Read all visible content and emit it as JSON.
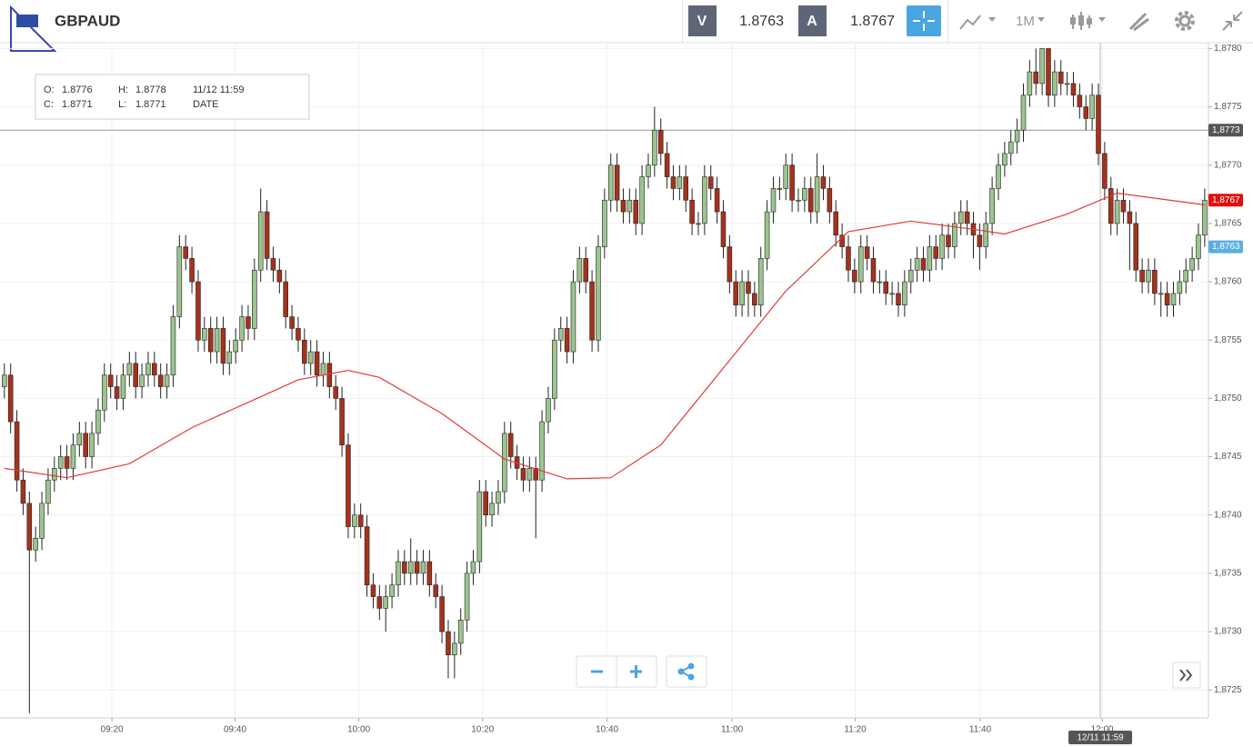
{
  "toolbar": {
    "symbol": "GBPAUD",
    "bid_label": "V",
    "bid": "1.8763",
    "ask_label": "A",
    "ask": "1.8767",
    "timeframe": "1M"
  },
  "ohlc_box": {
    "items": [
      [
        "O:",
        "1.8776"
      ],
      [
        "H:",
        "1.8778"
      ],
      [
        "C:",
        "1.8771"
      ],
      [
        "L:",
        "1.8771"
      ]
    ],
    "date": "11/12 11:59",
    "date_label": "DATE"
  },
  "chart_data": {
    "type": "candlestick",
    "up_color": "#9dc48e",
    "down_color": "#a5321c",
    "grid": true,
    "xlim": [
      -0.7,
      192.6
    ],
    "ylim": [
      1.87226,
      1.87805
    ],
    "yticks": [
      {
        "value": 1.8725,
        "label": "1,8725"
      },
      {
        "value": 1.873,
        "label": "1,8730"
      },
      {
        "value": 1.8735,
        "label": "1,8735"
      },
      {
        "value": 1.874,
        "label": "1,8740"
      },
      {
        "value": 1.8745,
        "label": "1,8745"
      },
      {
        "value": 1.875,
        "label": "1,8750"
      },
      {
        "value": 1.8755,
        "label": "1,8755"
      },
      {
        "value": 1.876,
        "label": "1,8760"
      },
      {
        "value": 1.8765,
        "label": "1,8765"
      },
      {
        "value": 1.877,
        "label": "1,8770"
      },
      {
        "value": 1.8775,
        "label": "1,8775"
      },
      {
        "value": 1.878,
        "label": "1,8780"
      }
    ],
    "xticks": [
      {
        "value": 17.2,
        "label": "09:20"
      },
      {
        "value": 36.9,
        "label": "09:40"
      },
      {
        "value": 56.7,
        "label": "10:00"
      },
      {
        "value": 76.5,
        "label": "10:20"
      },
      {
        "value": 96.4,
        "label": "10:40"
      },
      {
        "value": 116.4,
        "label": "11:00"
      },
      {
        "value": 136.1,
        "label": "11:20"
      },
      {
        "value": 156.1,
        "label": "11:40"
      },
      {
        "value": 175.6,
        "label": "12:00"
      }
    ],
    "crosshair": {
      "y": {
        "value": 1.8773,
        "label": "1,8773"
      },
      "x": {
        "value": 175.3,
        "label": "12/11 11:59"
      }
    },
    "price_tags": [
      {
        "value": 1.8767,
        "label": "1,8767",
        "color": "#e01010"
      },
      {
        "value": 1.8763,
        "label": "1,8763",
        "color": "#5aaee0"
      }
    ],
    "series": [
      {
        "color": "#e03a3a",
        "x": [
          0,
          10,
          20,
          30,
          40,
          47,
          55,
          60,
          70,
          80,
          90,
          97,
          105,
          115,
          125,
          135,
          145,
          155,
          160,
          170,
          178,
          185,
          192
        ],
        "values": [
          1.8744,
          1.87432,
          1.87444,
          1.87475,
          1.87499,
          1.87516,
          1.87524,
          1.87518,
          1.87487,
          1.87448,
          1.87431,
          1.87432,
          1.8746,
          1.87526,
          1.87592,
          1.87643,
          1.87652,
          1.87645,
          1.87641,
          1.87658,
          1.87676,
          1.87671,
          1.87666
        ]
      }
    ],
    "ohlc": [
      [
        1.8751,
        1.8753,
        1.875,
        1.8752
      ],
      [
        1.8752,
        1.8753,
        1.8747,
        1.8748
      ],
      [
        1.8748,
        1.8749,
        1.8742,
        1.8743
      ],
      [
        1.8743,
        1.8744,
        1.874,
        1.8741
      ],
      [
        1.8741,
        1.8742,
        1.8723,
        1.8737
      ],
      [
        1.8737,
        1.8739,
        1.8736,
        1.8738
      ],
      [
        1.8738,
        1.8742,
        1.8737,
        1.8741
      ],
      [
        1.8741,
        1.8744,
        1.874,
        1.8743
      ],
      [
        1.8743,
        1.8745,
        1.8742,
        1.8744
      ],
      [
        1.8744,
        1.8746,
        1.8743,
        1.8745
      ],
      [
        1.8745,
        1.8746,
        1.8743,
        1.8744
      ],
      [
        1.8744,
        1.8747,
        1.8743,
        1.8746
      ],
      [
        1.8746,
        1.8748,
        1.8745,
        1.8747
      ],
      [
        1.8747,
        1.8748,
        1.8744,
        1.8745
      ],
      [
        1.8745,
        1.8748,
        1.8744,
        1.8747
      ],
      [
        1.8747,
        1.875,
        1.8746,
        1.8749
      ],
      [
        1.8749,
        1.8753,
        1.8748,
        1.8752
      ],
      [
        1.8752,
        1.8753,
        1.875,
        1.8751
      ],
      [
        1.8751,
        1.8752,
        1.8749,
        1.875
      ],
      [
        1.875,
        1.8753,
        1.8749,
        1.8752
      ],
      [
        1.8752,
        1.8754,
        1.8751,
        1.8753
      ],
      [
        1.8753,
        1.8754,
        1.875,
        1.8751
      ],
      [
        1.8751,
        1.8753,
        1.875,
        1.8752
      ],
      [
        1.8752,
        1.8754,
        1.8751,
        1.8753
      ],
      [
        1.8753,
        1.8754,
        1.8751,
        1.8752
      ],
      [
        1.8752,
        1.8753,
        1.875,
        1.8751
      ],
      [
        1.8751,
        1.8753,
        1.875,
        1.8752
      ],
      [
        1.8752,
        1.8758,
        1.8751,
        1.8757
      ],
      [
        1.8757,
        1.8764,
        1.8756,
        1.8763
      ],
      [
        1.8763,
        1.8764,
        1.8761,
        1.8762
      ],
      [
        1.8762,
        1.8763,
        1.8759,
        1.876
      ],
      [
        1.876,
        1.8761,
        1.8754,
        1.8755
      ],
      [
        1.8755,
        1.8757,
        1.8754,
        1.8756
      ],
      [
        1.8756,
        1.8757,
        1.8753,
        1.8754
      ],
      [
        1.8754,
        1.8757,
        1.8753,
        1.8756
      ],
      [
        1.8756,
        1.8757,
        1.8752,
        1.8753
      ],
      [
        1.8753,
        1.8755,
        1.8752,
        1.8754
      ],
      [
        1.8754,
        1.8756,
        1.8753,
        1.8755
      ],
      [
        1.8755,
        1.8758,
        1.8754,
        1.8757
      ],
      [
        1.8757,
        1.8758,
        1.8755,
        1.8756
      ],
      [
        1.8756,
        1.8762,
        1.8755,
        1.8761
      ],
      [
        1.8761,
        1.8768,
        1.876,
        1.8766
      ],
      [
        1.8766,
        1.8767,
        1.8761,
        1.8762
      ],
      [
        1.8762,
        1.8763,
        1.876,
        1.8761
      ],
      [
        1.8761,
        1.8762,
        1.8759,
        1.876
      ],
      [
        1.876,
        1.8761,
        1.8756,
        1.8757
      ],
      [
        1.8757,
        1.8758,
        1.8755,
        1.8756
      ],
      [
        1.8756,
        1.8757,
        1.8754,
        1.8755
      ],
      [
        1.8755,
        1.8756,
        1.8752,
        1.8753
      ],
      [
        1.8753,
        1.8755,
        1.8752,
        1.8754
      ],
      [
        1.8754,
        1.8755,
        1.8751,
        1.8752
      ],
      [
        1.8752,
        1.8754,
        1.8751,
        1.8753
      ],
      [
        1.8753,
        1.8754,
        1.875,
        1.8751
      ],
      [
        1.8751,
        1.8752,
        1.8749,
        1.875
      ],
      [
        1.875,
        1.8751,
        1.8745,
        1.8746
      ],
      [
        1.8746,
        1.8747,
        1.8738,
        1.8739
      ],
      [
        1.8739,
        1.8741,
        1.8738,
        1.874
      ],
      [
        1.874,
        1.8741,
        1.8738,
        1.8739
      ],
      [
        1.8739,
        1.874,
        1.8733,
        1.8734
      ],
      [
        1.8734,
        1.8735,
        1.8732,
        1.8733
      ],
      [
        1.8733,
        1.8734,
        1.8731,
        1.8732
      ],
      [
        1.8732,
        1.8734,
        1.873,
        1.8733
      ],
      [
        1.8733,
        1.8735,
        1.8732,
        1.8734
      ],
      [
        1.8734,
        1.8737,
        1.8733,
        1.8736
      ],
      [
        1.8736,
        1.8737,
        1.8734,
        1.8735
      ],
      [
        1.8735,
        1.8738,
        1.8734,
        1.8736
      ],
      [
        1.8736,
        1.8737,
        1.8734,
        1.8735
      ],
      [
        1.8735,
        1.8737,
        1.8734,
        1.8736
      ],
      [
        1.8736,
        1.8737,
        1.8733,
        1.8734
      ],
      [
        1.8734,
        1.8735,
        1.8732,
        1.8733
      ],
      [
        1.8733,
        1.8734,
        1.8729,
        1.873
      ],
      [
        1.873,
        1.8731,
        1.8726,
        1.8728
      ],
      [
        1.8728,
        1.873,
        1.8726,
        1.8729
      ],
      [
        1.8729,
        1.8732,
        1.8728,
        1.8731
      ],
      [
        1.8731,
        1.8736,
        1.873,
        1.8735
      ],
      [
        1.8735,
        1.8737,
        1.8734,
        1.8736
      ],
      [
        1.8736,
        1.8743,
        1.8735,
        1.8742
      ],
      [
        1.8742,
        1.8743,
        1.8739,
        1.874
      ],
      [
        1.874,
        1.8742,
        1.8739,
        1.8741
      ],
      [
        1.8741,
        1.8743,
        1.874,
        1.8742
      ],
      [
        1.8742,
        1.8748,
        1.8741,
        1.8747
      ],
      [
        1.8747,
        1.8748,
        1.8744,
        1.8745
      ],
      [
        1.8745,
        1.8746,
        1.8743,
        1.8744
      ],
      [
        1.8744,
        1.8745,
        1.8742,
        1.8743
      ],
      [
        1.8743,
        1.8745,
        1.8742,
        1.8744
      ],
      [
        1.8744,
        1.8745,
        1.8738,
        1.8743
      ],
      [
        1.8743,
        1.8749,
        1.8742,
        1.8748
      ],
      [
        1.8748,
        1.8751,
        1.8747,
        1.875
      ],
      [
        1.875,
        1.8756,
        1.8749,
        1.8755
      ],
      [
        1.8755,
        1.8757,
        1.8754,
        1.8756
      ],
      [
        1.8756,
        1.8757,
        1.8753,
        1.8754
      ],
      [
        1.8754,
        1.8761,
        1.8753,
        1.876
      ],
      [
        1.876,
        1.8763,
        1.8759,
        1.8762
      ],
      [
        1.8762,
        1.8763,
        1.8759,
        1.876
      ],
      [
        1.876,
        1.8761,
        1.8754,
        1.8755
      ],
      [
        1.8755,
        1.8764,
        1.8754,
        1.8763
      ],
      [
        1.8763,
        1.8768,
        1.8762,
        1.8767
      ],
      [
        1.8767,
        1.8771,
        1.8766,
        1.877
      ],
      [
        1.877,
        1.8771,
        1.8766,
        1.8767
      ],
      [
        1.8767,
        1.8768,
        1.8765,
        1.8766
      ],
      [
        1.8766,
        1.8768,
        1.8765,
        1.8767
      ],
      [
        1.8767,
        1.8768,
        1.8764,
        1.8765
      ],
      [
        1.8765,
        1.877,
        1.8764,
        1.8769
      ],
      [
        1.8769,
        1.8771,
        1.8768,
        1.877
      ],
      [
        1.877,
        1.8775,
        1.8769,
        1.8773
      ],
      [
        1.8773,
        1.8774,
        1.877,
        1.8771
      ],
      [
        1.8771,
        1.8772,
        1.8768,
        1.8769
      ],
      [
        1.8769,
        1.877,
        1.8767,
        1.8768
      ],
      [
        1.8768,
        1.877,
        1.8767,
        1.8769
      ],
      [
        1.8769,
        1.877,
        1.8766,
        1.8767
      ],
      [
        1.8767,
        1.8768,
        1.8764,
        1.8765
      ],
      [
        1.8765,
        1.8766,
        1.8764,
        1.8765
      ],
      [
        1.8765,
        1.877,
        1.8764,
        1.8769
      ],
      [
        1.8769,
        1.877,
        1.8767,
        1.8768
      ],
      [
        1.8768,
        1.8769,
        1.8765,
        1.8766
      ],
      [
        1.8766,
        1.8767,
        1.8762,
        1.8763
      ],
      [
        1.8763,
        1.8764,
        1.8759,
        1.876
      ],
      [
        1.876,
        1.8761,
        1.8757,
        1.8758
      ],
      [
        1.8758,
        1.8761,
        1.8757,
        1.876
      ],
      [
        1.876,
        1.8761,
        1.8757,
        1.8759
      ],
      [
        1.8759,
        1.876,
        1.8757,
        1.8758
      ],
      [
        1.8758,
        1.8763,
        1.8757,
        1.8762
      ],
      [
        1.8762,
        1.8767,
        1.8761,
        1.8766
      ],
      [
        1.8766,
        1.8769,
        1.8765,
        1.8768
      ],
      [
        1.8768,
        1.8769,
        1.8767,
        1.8768
      ],
      [
        1.8768,
        1.8771,
        1.8767,
        1.877
      ],
      [
        1.877,
        1.8771,
        1.8766,
        1.8767
      ],
      [
        1.8767,
        1.8768,
        1.8766,
        1.8767
      ],
      [
        1.8767,
        1.8769,
        1.8766,
        1.8768
      ],
      [
        1.8768,
        1.8769,
        1.8765,
        1.8766
      ],
      [
        1.8766,
        1.8771,
        1.8765,
        1.8769
      ],
      [
        1.8769,
        1.877,
        1.8767,
        1.8768
      ],
      [
        1.8768,
        1.8769,
        1.8765,
        1.8766
      ],
      [
        1.8766,
        1.8767,
        1.8763,
        1.8764
      ],
      [
        1.8764,
        1.8765,
        1.8762,
        1.8763
      ],
      [
        1.8763,
        1.8764,
        1.876,
        1.8761
      ],
      [
        1.8761,
        1.8762,
        1.8759,
        1.876
      ],
      [
        1.876,
        1.8764,
        1.8759,
        1.8763
      ],
      [
        1.8763,
        1.8764,
        1.8761,
        1.8762
      ],
      [
        1.8762,
        1.8763,
        1.8759,
        1.876
      ],
      [
        1.876,
        1.8761,
        1.8759,
        1.876
      ],
      [
        1.876,
        1.8761,
        1.8758,
        1.8759
      ],
      [
        1.8759,
        1.876,
        1.8758,
        1.8759
      ],
      [
        1.8759,
        1.876,
        1.8757,
        1.8758
      ],
      [
        1.8758,
        1.8761,
        1.8757,
        1.876
      ],
      [
        1.876,
        1.8762,
        1.8759,
        1.8761
      ],
      [
        1.8761,
        1.8763,
        1.876,
        1.8762
      ],
      [
        1.8762,
        1.8763,
        1.876,
        1.8761
      ],
      [
        1.8761,
        1.8764,
        1.876,
        1.8763
      ],
      [
        1.8763,
        1.8764,
        1.8761,
        1.8762
      ],
      [
        1.8762,
        1.8765,
        1.8761,
        1.8764
      ],
      [
        1.8764,
        1.8765,
        1.8762,
        1.8763
      ],
      [
        1.8763,
        1.8766,
        1.8762,
        1.8765
      ],
      [
        1.8765,
        1.8767,
        1.8764,
        1.8766
      ],
      [
        1.8766,
        1.8767,
        1.8764,
        1.8765
      ],
      [
        1.8765,
        1.8766,
        1.8762,
        1.8764
      ],
      [
        1.8764,
        1.8765,
        1.8761,
        1.8763
      ],
      [
        1.8763,
        1.8766,
        1.8762,
        1.8765
      ],
      [
        1.8765,
        1.8769,
        1.8764,
        1.8768
      ],
      [
        1.8768,
        1.8771,
        1.8767,
        1.877
      ],
      [
        1.877,
        1.8772,
        1.8769,
        1.8771
      ],
      [
        1.8771,
        1.8773,
        1.877,
        1.8772
      ],
      [
        1.8772,
        1.8774,
        1.8771,
        1.8773
      ],
      [
        1.8773,
        1.8777,
        1.8772,
        1.8776
      ],
      [
        1.8776,
        1.8779,
        1.8775,
        1.8778
      ],
      [
        1.8778,
        1.878,
        1.8776,
        1.8777
      ],
      [
        1.8777,
        1.878,
        1.8776,
        1.878
      ],
      [
        1.878,
        1.878,
        1.8775,
        1.8776
      ],
      [
        1.8776,
        1.8779,
        1.8775,
        1.8778
      ],
      [
        1.8778,
        1.8779,
        1.8776,
        1.8777
      ],
      [
        1.8777,
        1.8778,
        1.8776,
        1.8777
      ],
      [
        1.8777,
        1.8778,
        1.8775,
        1.8776
      ],
      [
        1.8776,
        1.8777,
        1.8774,
        1.8775
      ],
      [
        1.8775,
        1.8776,
        1.8773,
        1.8774
      ],
      [
        1.8774,
        1.8777,
        1.8773,
        1.8776
      ],
      [
        1.8776,
        1.8777,
        1.877,
        1.8771
      ],
      [
        1.8771,
        1.8772,
        1.8767,
        1.8768
      ],
      [
        1.8768,
        1.8769,
        1.8764,
        1.8765
      ],
      [
        1.8765,
        1.8768,
        1.8764,
        1.8767
      ],
      [
        1.8767,
        1.8768,
        1.8765,
        1.8766
      ],
      [
        1.8766,
        1.8767,
        1.8761,
        1.8765
      ],
      [
        1.8765,
        1.8766,
        1.876,
        1.8761
      ],
      [
        1.8761,
        1.8762,
        1.8759,
        1.876
      ],
      [
        1.876,
        1.8762,
        1.8759,
        1.8761
      ],
      [
        1.8761,
        1.8762,
        1.8758,
        1.8759
      ],
      [
        1.8759,
        1.876,
        1.8757,
        1.8759
      ],
      [
        1.8759,
        1.876,
        1.8757,
        1.8758
      ],
      [
        1.8758,
        1.876,
        1.8757,
        1.8759
      ],
      [
        1.8759,
        1.8761,
        1.8758,
        1.876
      ],
      [
        1.876,
        1.8762,
        1.8759,
        1.8761
      ],
      [
        1.8761,
        1.8763,
        1.876,
        1.8762
      ],
      [
        1.8762,
        1.8765,
        1.8761,
        1.8764
      ],
      [
        1.8764,
        1.8768,
        1.8763,
        1.8767
      ]
    ]
  }
}
